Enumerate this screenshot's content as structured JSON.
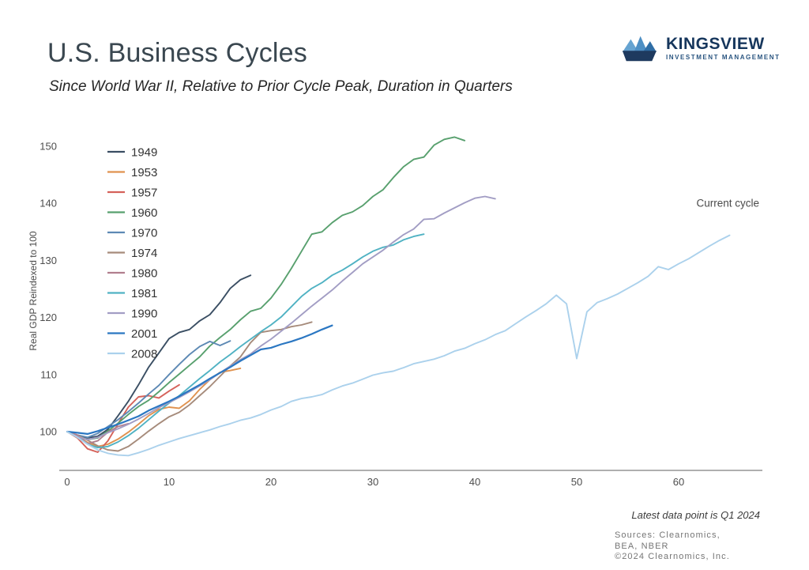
{
  "header": {
    "title": "U.S. Business Cycles",
    "subtitle": "Since World War II, Relative to Prior Cycle Peak, Duration in Quarters"
  },
  "logo": {
    "name": "KINGSVIEW",
    "tagline": "INVESTMENT MANAGEMENT",
    "colors": {
      "navy": "#1e3a5f",
      "light_blue": "#65a3d1",
      "mid_blue": "#4d8fc4",
      "deep_blue": "#2f6ea6"
    }
  },
  "chart_data": {
    "type": "line",
    "title": "U.S. Business Cycles",
    "subtitle": "Since World War II, Relative to Prior Cycle Peak, Duration in Quarters",
    "xlabel": "",
    "ylabel": "Real GDP Reindexed to 100",
    "x_unit": "duration in quarters since prior cycle peak",
    "xlim": [
      0,
      68
    ],
    "ylim": [
      95,
      153
    ],
    "x_ticks": [
      0,
      10,
      20,
      30,
      40,
      50,
      60
    ],
    "y_ticks": [
      100,
      110,
      120,
      130,
      140,
      150
    ],
    "grid": false,
    "legend_position": "upper-left",
    "annotation": {
      "text": "Current cycle",
      "x": 57,
      "y": 137.5
    },
    "series": [
      {
        "name": "1949",
        "color": "#3a4e63",
        "values": [
          100,
          99.4,
          98.9,
          99.2,
          100.4,
          102.8,
          105.3,
          108.2,
          111.3,
          113.8,
          116.3,
          117.4,
          117.9,
          119.4,
          120.5,
          122.6,
          125.1,
          126.6,
          127.4
        ]
      },
      {
        "name": "1953",
        "color": "#e0924f",
        "values": [
          100,
          99.2,
          98.1,
          97.4,
          97.8,
          98.7,
          99.9,
          101.3,
          102.8,
          103.9,
          104.3,
          104.1,
          105.4,
          107.4,
          109.1,
          110.4,
          110.7,
          111.1
        ]
      },
      {
        "name": "1957",
        "color": "#d5625a",
        "values": [
          100,
          98.9,
          97.0,
          96.4,
          98.4,
          101.4,
          104.3,
          106.1,
          106.3,
          105.9,
          107.1,
          108.2
        ]
      },
      {
        "name": "1960",
        "color": "#58a06e",
        "values": [
          100,
          99.2,
          98.6,
          98.9,
          100.1,
          101.5,
          103.0,
          104.4,
          105.5,
          107.0,
          108.6,
          110.1,
          111.6,
          113.1,
          115.0,
          116.5,
          117.9,
          119.6,
          121.1,
          121.6,
          123.4,
          125.8,
          128.6,
          131.6,
          134.6,
          135.0,
          136.6,
          137.9,
          138.5,
          139.6,
          141.2,
          142.4,
          144.5,
          146.4,
          147.7,
          148.1,
          150.2,
          151.2,
          151.6,
          151.0
        ]
      },
      {
        "name": "1970",
        "color": "#5d89b4",
        "values": [
          100,
          99.4,
          99.0,
          99.7,
          100.9,
          102.1,
          103.5,
          105.0,
          106.6,
          108.1,
          110.0,
          111.8,
          113.5,
          114.9,
          115.8,
          115.1,
          115.9
        ]
      },
      {
        "name": "1974",
        "color": "#a68b7b",
        "values": [
          100,
          99.4,
          98.5,
          97.5,
          96.8,
          96.6,
          97.4,
          98.7,
          100.1,
          101.4,
          102.6,
          103.4,
          104.7,
          106.3,
          107.9,
          109.7,
          111.5,
          113.1,
          115.6,
          117.4,
          117.7,
          117.9,
          118.4,
          118.7,
          119.2
        ]
      },
      {
        "name": "1980",
        "color": "#b17f8e",
        "values": [
          100,
          99.4,
          97.9,
          98.4,
          99.9,
          100.9,
          101.4
        ]
      },
      {
        "name": "1981",
        "color": "#50b2c3",
        "values": [
          100,
          99.1,
          97.8,
          97.2,
          97.4,
          98.2,
          99.3,
          100.6,
          102.1,
          103.6,
          105.0,
          106.3,
          107.8,
          109.3,
          110.7,
          112.2,
          113.5,
          114.9,
          116.2,
          117.5,
          118.7,
          120.1,
          121.9,
          123.7,
          125.1,
          126.1,
          127.4,
          128.3,
          129.4,
          130.6,
          131.6,
          132.3,
          132.7,
          133.6,
          134.2,
          134.6
        ]
      },
      {
        "name": "1990",
        "color": "#a29dc4",
        "values": [
          100,
          99.1,
          98.6,
          99.0,
          99.8,
          100.5,
          101.3,
          102.2,
          103.2,
          104.2,
          105.1,
          106.0,
          107.0,
          108.0,
          109.1,
          110.3,
          111.5,
          112.6,
          113.6,
          115.0,
          116.2,
          117.6,
          119.0,
          120.5,
          122.0,
          123.4,
          124.8,
          126.4,
          127.9,
          129.4,
          130.6,
          131.8,
          133.2,
          134.5,
          135.5,
          137.2,
          137.3,
          138.3,
          139.2,
          140.1,
          140.9,
          141.2,
          140.8
        ]
      },
      {
        "name": "2001",
        "color": "#2b77c2",
        "values": [
          100,
          99.8,
          99.6,
          100.1,
          100.7,
          101.3,
          102.0,
          102.7,
          103.7,
          104.5,
          105.3,
          106.2,
          107.2,
          108.2,
          109.3,
          110.3,
          111.3,
          112.4,
          113.4,
          114.4,
          114.7,
          115.3,
          115.8,
          116.4,
          117.1,
          117.9,
          118.6
        ]
      },
      {
        "name": "2008",
        "color": "#abd1ec",
        "values": [
          100,
          99.0,
          97.8,
          96.8,
          96.2,
          95.9,
          95.8,
          96.3,
          96.9,
          97.6,
          98.2,
          98.8,
          99.3,
          99.8,
          100.3,
          100.9,
          101.4,
          102.0,
          102.4,
          103.0,
          103.8,
          104.4,
          105.3,
          105.8,
          106.1,
          106.5,
          107.3,
          108.0,
          108.5,
          109.2,
          109.9,
          110.3,
          110.6,
          111.2,
          111.9,
          112.3,
          112.7,
          113.3,
          114.1,
          114.6,
          115.4,
          116.1,
          117.0,
          117.7,
          118.9,
          120.1,
          121.2,
          122.4,
          123.9,
          122.4,
          112.8,
          121.0,
          122.6,
          123.3,
          124.1,
          125.1,
          126.1,
          127.2,
          128.9,
          128.4,
          129.4,
          130.3,
          131.4,
          132.5,
          133.5,
          134.4
        ]
      }
    ]
  },
  "footer": {
    "note": "Latest data point is Q1 2024",
    "sources_line1": "Sources: Clearnomics,",
    "sources_line2": "BEA, NBER",
    "copyright": "©2024 Clearnomics, Inc."
  }
}
